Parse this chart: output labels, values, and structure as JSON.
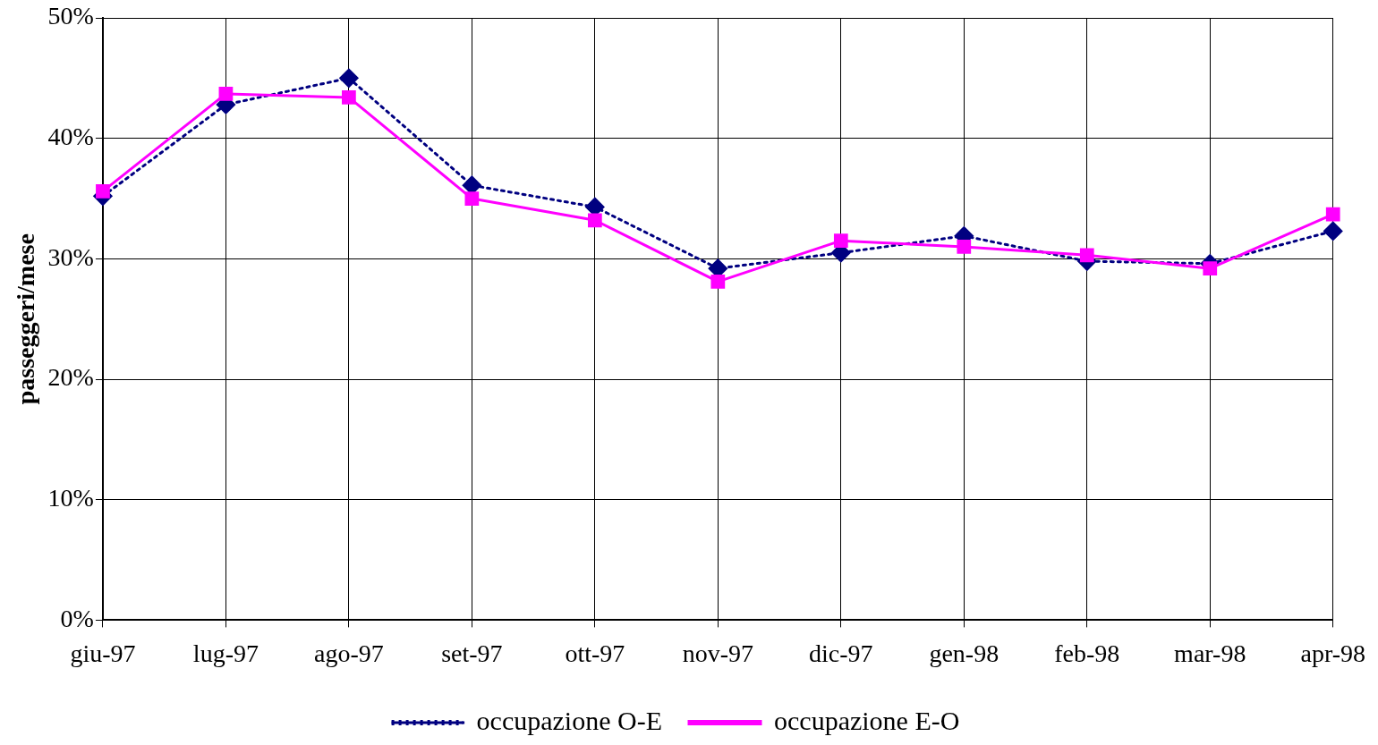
{
  "chart_data": {
    "type": "line",
    "ylabel": "passeggeri/mese",
    "categories": [
      "giu-97",
      "lug-97",
      "ago-97",
      "set-97",
      "ott-97",
      "nov-97",
      "dic-97",
      "gen-98",
      "feb-98",
      "mar-98",
      "apr-98"
    ],
    "series": [
      {
        "name": "occupazione O-E",
        "color": "#000080",
        "marker": "diamond",
        "line_style": "dotted",
        "values": [
          35.2,
          42.8,
          45.0,
          36.1,
          34.3,
          29.2,
          30.5,
          31.9,
          29.8,
          29.6,
          32.3
        ]
      },
      {
        "name": "occupazione E-O",
        "color": "#ff00ff",
        "marker": "square",
        "line_style": "solid",
        "values": [
          35.6,
          43.7,
          43.4,
          35.0,
          33.2,
          28.1,
          31.5,
          31.0,
          30.3,
          29.2,
          33.7
        ]
      }
    ],
    "ylim": [
      0,
      50
    ],
    "yticks": [
      {
        "value": 0,
        "label": "0%"
      },
      {
        "value": 10,
        "label": "10%"
      },
      {
        "value": 20,
        "label": "20%"
      },
      {
        "value": 30,
        "label": "30%"
      },
      {
        "value": 40,
        "label": "40%"
      },
      {
        "value": 50,
        "label": "50%"
      }
    ],
    "grid": true,
    "legend": "bottom"
  }
}
